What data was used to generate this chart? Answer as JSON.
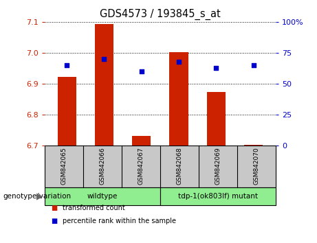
{
  "title": "GDS4573 / 193845_s_at",
  "samples": [
    "GSM842065",
    "GSM842066",
    "GSM842067",
    "GSM842068",
    "GSM842069",
    "GSM842070"
  ],
  "bar_values": [
    6.923,
    7.093,
    6.733,
    7.003,
    6.873,
    6.703
  ],
  "bar_baseline": 6.7,
  "percentile_values": [
    65,
    70,
    60,
    68,
    63,
    65
  ],
  "bar_color": "#cc2200",
  "dot_color": "#0000cc",
  "ylim_left": [
    6.7,
    7.1
  ],
  "ylim_right": [
    0,
    100
  ],
  "yticks_left": [
    6.7,
    6.8,
    6.9,
    7.0,
    7.1
  ],
  "yticks_right": [
    0,
    25,
    50,
    75,
    100
  ],
  "ytick_labels_right": [
    "0",
    "25",
    "50",
    "75",
    "100%"
  ],
  "groups": [
    {
      "label": "wildtype",
      "indices": [
        0,
        1,
        2
      ]
    },
    {
      "label": "tdp-1(ok803lf) mutant",
      "indices": [
        3,
        4,
        5
      ]
    }
  ],
  "genotype_label": "genotype/variation",
  "legend_items": [
    {
      "label": "transformed count",
      "color": "#cc2200"
    },
    {
      "label": "percentile rank within the sample",
      "color": "#0000cc"
    }
  ],
  "plot_bg": "#ffffff",
  "tick_area_bg": "#c8c8c8",
  "group_area_bg": "#90ee90",
  "bar_width": 0.5
}
